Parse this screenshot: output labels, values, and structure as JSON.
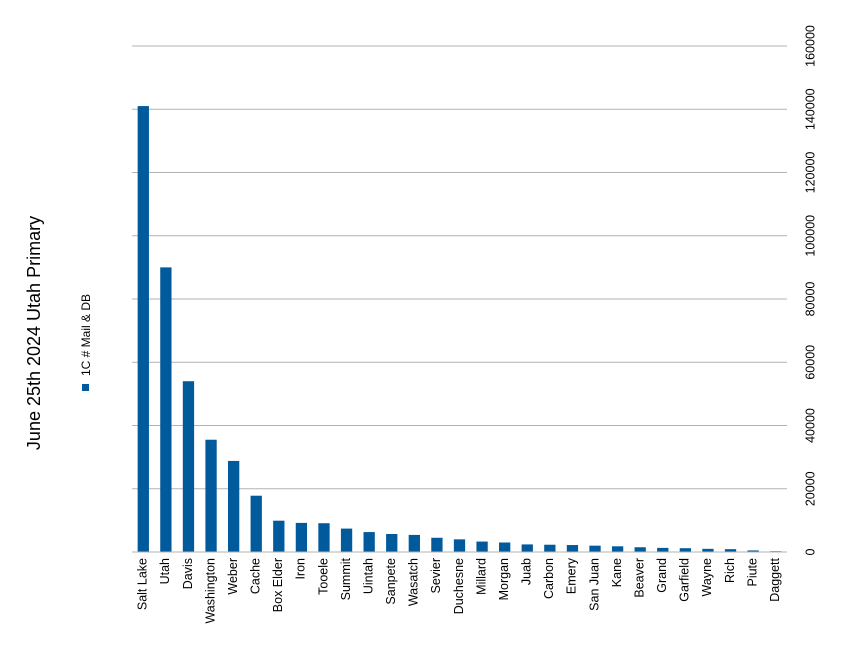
{
  "chart_data": {
    "type": "bar",
    "title": "June 25th 2024 Utah Primary",
    "series": [
      {
        "name": "1C # Mail & DB",
        "color": "#005a9c",
        "values": [
          141000,
          90000,
          54000,
          35500,
          28800,
          17800,
          9900,
          9200,
          9100,
          7400,
          6300,
          5700,
          5400,
          4500,
          4000,
          3300,
          3000,
          2400,
          2300,
          2200,
          2000,
          1800,
          1500,
          1300,
          1200,
          1000,
          900,
          500,
          250
        ]
      }
    ],
    "categories": [
      "Salt Lake",
      "Utah",
      "Davis",
      "Washington",
      "Weber",
      "Cache",
      "Box Elder",
      "Iron",
      "Tooele",
      "Summit",
      "Uintah",
      "Sanpete",
      "Wasatch",
      "Sevier",
      "Duchesne",
      "Millard",
      "Morgan",
      "Juab",
      "Carbon",
      "Emery",
      "San Juan",
      "Kane",
      "Beaver",
      "Grand",
      "Garfield",
      "Wayne",
      "Rich",
      "Piute",
      "Daggett"
    ],
    "ylim": [
      0,
      160000
    ],
    "yticks": [
      "0",
      "20000",
      "40000",
      "60000",
      "80000",
      "100000",
      "120000",
      "140000",
      "160000"
    ],
    "grid": true,
    "legend_position": "left"
  }
}
